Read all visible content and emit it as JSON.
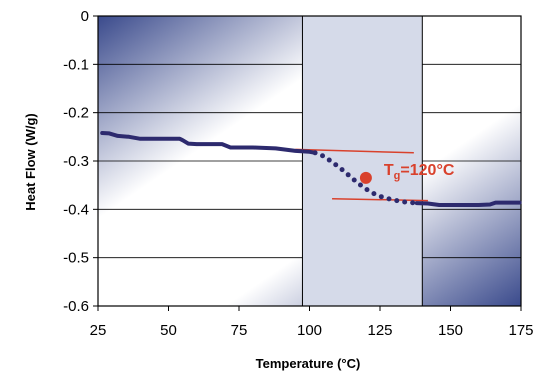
{
  "chart_data": {
    "type": "line",
    "xlabel": "Temperature (°C)",
    "ylabel": "Heat Flow (W/g)",
    "xlim": [
      25,
      175
    ],
    "ylim": [
      -0.6,
      0
    ],
    "x_ticks": [
      25,
      50,
      75,
      100,
      125,
      150,
      175
    ],
    "y_ticks": [
      0,
      -0.1,
      -0.2,
      -0.3,
      -0.4,
      -0.5,
      -0.6
    ],
    "x_tick_labels": [
      "25",
      "50",
      "75",
      "100",
      "125",
      "150",
      "175"
    ],
    "y_tick_labels": [
      "0",
      "-0.1",
      "-0.2",
      "-0.3",
      "-0.4",
      "-0.5",
      "-0.6"
    ],
    "grid": "horizontal",
    "shaded_region": [
      97.5,
      140
    ],
    "series": [
      {
        "style": "solid",
        "color": "#2d2a6e",
        "points": [
          [
            26.5,
            -0.242
          ],
          [
            29,
            -0.243
          ],
          [
            32,
            -0.248
          ],
          [
            36,
            -0.25
          ],
          [
            40,
            -0.254
          ],
          [
            45,
            -0.254
          ],
          [
            50,
            -0.254
          ],
          [
            54,
            -0.254
          ],
          [
            55,
            -0.257
          ],
          [
            57,
            -0.264
          ],
          [
            60,
            -0.265
          ],
          [
            65,
            -0.265
          ],
          [
            69,
            -0.265
          ],
          [
            72,
            -0.272
          ],
          [
            80,
            -0.272
          ],
          [
            88,
            -0.274
          ],
          [
            95,
            -0.279
          ],
          [
            100,
            -0.281
          ],
          [
            102,
            -0.283
          ]
        ]
      },
      {
        "style": "dotted",
        "color": "#2d2a6e",
        "points": [
          [
            102,
            -0.283
          ],
          [
            105,
            -0.29
          ],
          [
            108,
            -0.302
          ],
          [
            111,
            -0.315
          ],
          [
            114,
            -0.33
          ],
          [
            117,
            -0.345
          ],
          [
            120,
            -0.358
          ],
          [
            123,
            -0.368
          ],
          [
            126,
            -0.375
          ],
          [
            130,
            -0.381
          ],
          [
            134,
            -0.385
          ],
          [
            138,
            -0.387
          ]
        ]
      },
      {
        "style": "solid",
        "color": "#2d2a6e",
        "points": [
          [
            138,
            -0.387
          ],
          [
            142,
            -0.388
          ],
          [
            146,
            -0.391
          ],
          [
            150,
            -0.391
          ],
          [
            155,
            -0.391
          ],
          [
            160,
            -0.391
          ],
          [
            164,
            -0.39
          ],
          [
            166,
            -0.386
          ],
          [
            170,
            -0.386
          ],
          [
            174.5,
            -0.386
          ]
        ]
      }
    ],
    "tangent_lines": [
      {
        "color": "#d9412c",
        "from": [
          95,
          -0.276
        ],
        "to": [
          137,
          -0.283
        ]
      },
      {
        "color": "#d9412c",
        "from": [
          108,
          -0.378
        ],
        "to": [
          142,
          -0.382
        ]
      }
    ],
    "glass_transition": {
      "x": 120,
      "y": -0.335,
      "label_main": "T",
      "label_sub": "g",
      "label_rest": "=120°C",
      "color": "#d9412c"
    },
    "colors": {
      "curve": "#2d2a6e",
      "annotation": "#d9412c",
      "plot_gradient_dark": "#3a4a8c",
      "plot_gradient_light": "#ffffff",
      "shaded_band": "#d5dae9"
    }
  }
}
